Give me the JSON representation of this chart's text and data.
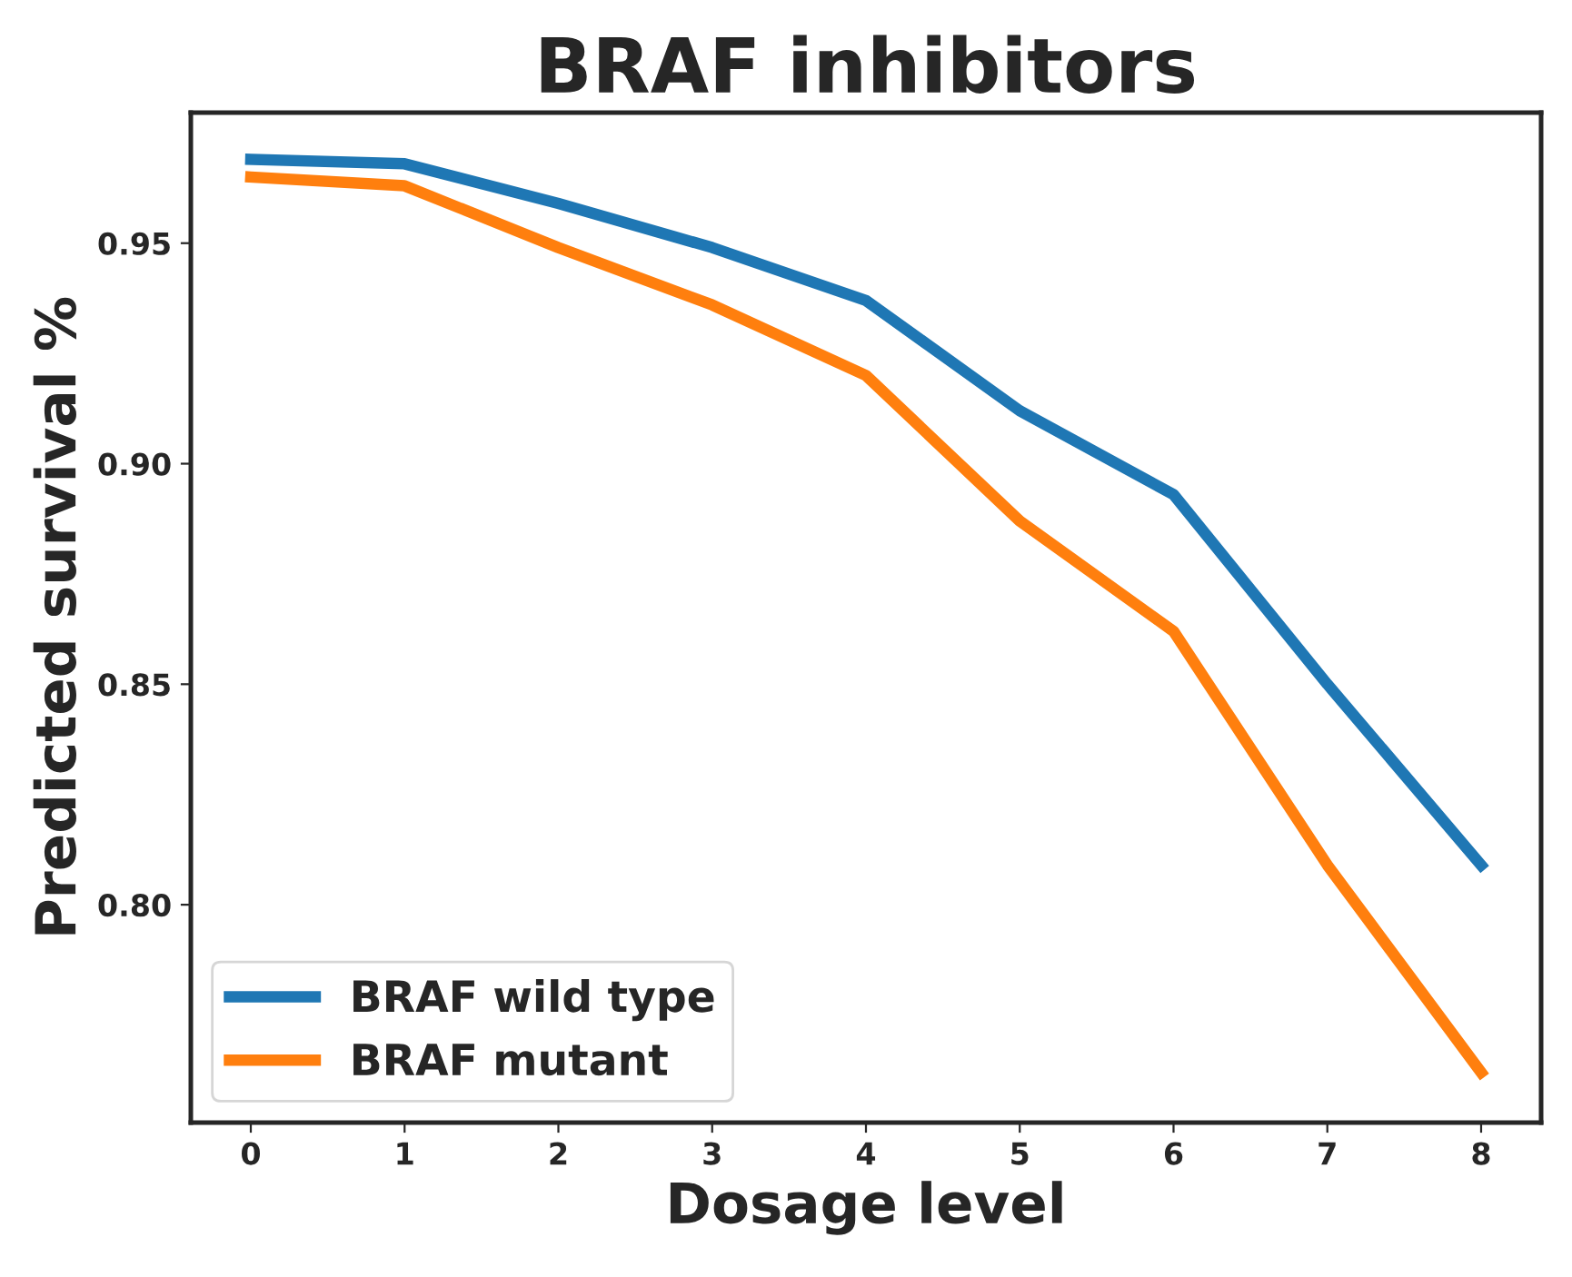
{
  "chart_data": {
    "type": "line",
    "title": "BRAF inhibitors",
    "xlabel": "Dosage level",
    "ylabel": "Predicted survival %",
    "x": [
      0,
      1,
      2,
      3,
      4,
      5,
      6,
      7,
      8
    ],
    "series": [
      {
        "name": "BRAF wild type",
        "color": "#1f77b4",
        "values": [
          0.969,
          0.968,
          0.959,
          0.949,
          0.937,
          0.912,
          0.893,
          0.85,
          0.809
        ]
      },
      {
        "name": "BRAF mutant",
        "color": "#ff7f0e",
        "values": [
          0.965,
          0.963,
          0.949,
          0.936,
          0.92,
          0.887,
          0.862,
          0.809,
          0.762
        ]
      }
    ],
    "xlim": [
      -0.39,
      8.39
    ],
    "ylim": [
      0.7506,
      0.9796
    ],
    "xticks": [
      0,
      1,
      2,
      3,
      4,
      5,
      6,
      7,
      8
    ],
    "yticks": [
      {
        "value": 0.8,
        "label": "0.80"
      },
      {
        "value": 0.85,
        "label": "0.85"
      },
      {
        "value": 0.9,
        "label": "0.90"
      },
      {
        "value": 0.95,
        "label": "0.95"
      }
    ],
    "grid": false,
    "legend": "bottom left",
    "line_style": "solid"
  }
}
